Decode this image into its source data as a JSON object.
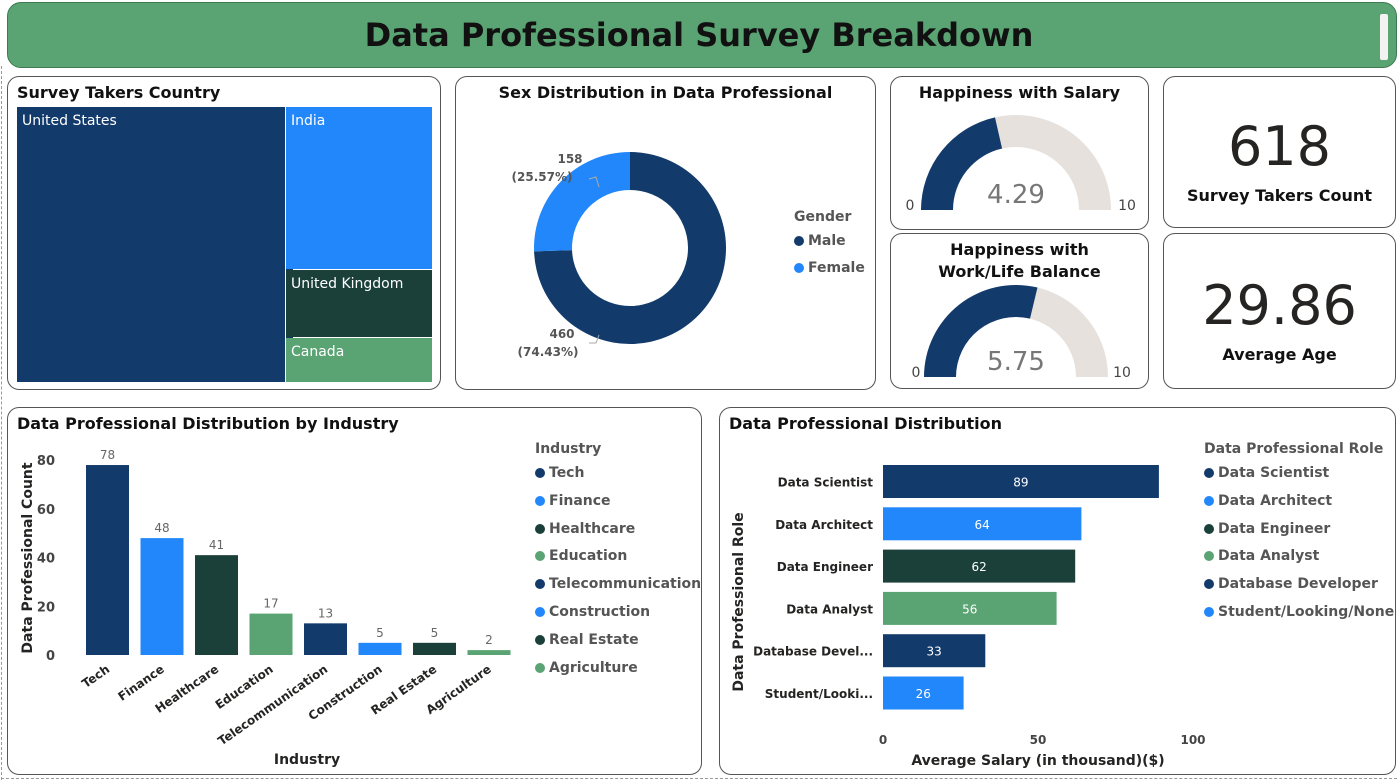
{
  "header": {
    "title": "Data Professional Survey Breakdown"
  },
  "colors": {
    "header_bg": "#5aa373",
    "navy": "#123a6b",
    "blue": "#2287fa",
    "dark_green": "#1b403a",
    "green": "#5aa373",
    "gauge_bg": "#e6e1dc"
  },
  "country": {
    "title": "Survey Takers Country",
    "chart_data": {
      "type": "treemap",
      "categories": [
        "United States",
        "India",
        "United Kingdom",
        "Canada"
      ]
    }
  },
  "sex": {
    "title": "Sex Distribution in Data Professional",
    "legend_title": "Gender",
    "female_label_value": "158",
    "female_label_pct": "(25.57%)",
    "male_label_value": "460",
    "male_label_pct": "(74.43%)",
    "chart_data": {
      "type": "pie",
      "categories": [
        "Male",
        "Female"
      ],
      "values": [
        460,
        158
      ],
      "percent": [
        74.43,
        25.57
      ]
    }
  },
  "happiness_salary": {
    "title": "Happiness with Salary",
    "min": "0",
    "max": "10",
    "value_label": "4.29",
    "chart_data": {
      "type": "gauge",
      "value": 4.29,
      "range": [
        0,
        10
      ]
    }
  },
  "happiness_wlb": {
    "title": "Happiness with Work/Life Balance",
    "min": "0",
    "max": "10",
    "value_label": "5.75",
    "chart_data": {
      "type": "gauge",
      "value": 5.75,
      "range": [
        0,
        10
      ]
    }
  },
  "kpi_count": {
    "value": "618",
    "label": "Survey Takers Count"
  },
  "kpi_age": {
    "value": "29.86",
    "label": "Average Age"
  },
  "industry": {
    "title": "Data Professional Distribution by Industry",
    "legend_title": "Industry",
    "chart_data": {
      "type": "bar",
      "categories": [
        "Tech",
        "Finance",
        "Healthcare",
        "Education",
        "Telecommunication",
        "Construction",
        "Real Estate",
        "Agriculture"
      ],
      "values": [
        78,
        48,
        41,
        17,
        13,
        5,
        5,
        2
      ],
      "xlabel": "Industry",
      "ylabel": "Data Professional Count",
      "ylim": [
        0,
        85
      ],
      "yticks": [
        0,
        20,
        40,
        60,
        80
      ],
      "grid": false,
      "legend": "right"
    }
  },
  "roles": {
    "title": "Data Professional Distribution",
    "legend_title": "Data Professional Role",
    "legend_items": [
      "Data Scientist",
      "Data Architect",
      "Data Engineer",
      "Data Analyst",
      "Database Developer",
      "Student/Looking/None"
    ],
    "chart_data": {
      "type": "bar",
      "orientation": "horizontal",
      "categories": [
        "Data Scientist",
        "Data Architect",
        "Data Engineer",
        "Data Analyst",
        "Database Devel...",
        "Student/Looki..."
      ],
      "values": [
        89,
        64,
        62,
        56,
        33,
        26
      ],
      "xlabel": "Average Salary (in thousand)($)",
      "ylabel": "Data Professional Role",
      "xlim": [
        0,
        100
      ],
      "xticks": [
        0,
        50,
        100
      ],
      "grid": false,
      "legend": "right"
    }
  }
}
